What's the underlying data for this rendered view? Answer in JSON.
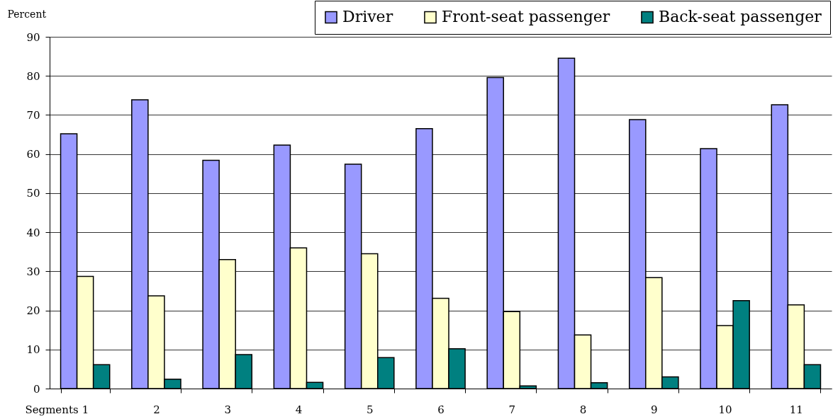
{
  "chart_data": {
    "type": "bar",
    "ylabel": "Percent",
    "xlabel": "Segments",
    "categories": [
      "1",
      "2",
      "3",
      "4",
      "5",
      "6",
      "7",
      "8",
      "9",
      "10",
      "11"
    ],
    "series": [
      {
        "name": "Driver",
        "color": "#9999ff",
        "values": [
          65.2,
          73.9,
          58.4,
          62.3,
          57.4,
          66.5,
          79.6,
          84.5,
          68.8,
          61.4,
          72.6
        ]
      },
      {
        "name": "Front-seat passenger",
        "color": "#ffffcc",
        "values": [
          28.7,
          23.7,
          33.0,
          36.0,
          34.5,
          23.1,
          19.7,
          13.7,
          28.4,
          16.1,
          21.4
        ]
      },
      {
        "name": "Back-seat passenger",
        "color": "#008080",
        "values": [
          6.1,
          2.4,
          8.7,
          1.6,
          7.9,
          10.2,
          0.7,
          1.5,
          3.0,
          22.5,
          6.1
        ]
      }
    ],
    "ylim": [
      0,
      90
    ],
    "yticks": [
      0,
      10,
      20,
      30,
      40,
      50,
      60,
      70,
      80,
      90
    ],
    "grid": "y",
    "legend": "top right"
  }
}
